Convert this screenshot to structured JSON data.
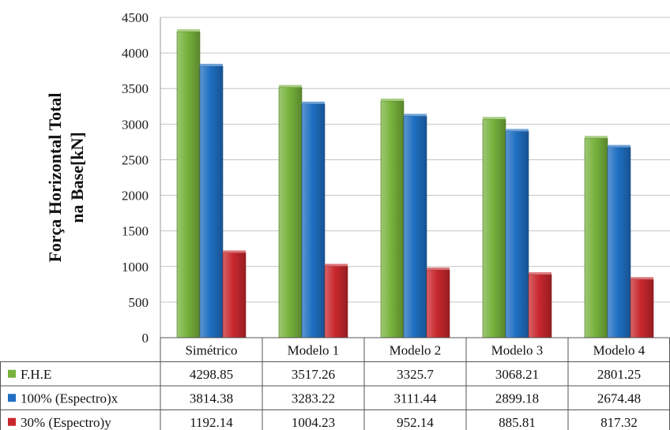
{
  "chart_data": {
    "type": "bar",
    "categories": [
      "Simétrico",
      "Modelo 1",
      "Modelo 2",
      "Modelo 3",
      "Modelo 4"
    ],
    "series": [
      {
        "name": "F.H.E",
        "color": "#77b23c",
        "values": [
          4298.85,
          3517.26,
          3325.7,
          3068.21,
          2801.25
        ],
        "labels": [
          "4298.85",
          "3517.26",
          "3325.7",
          "3068.21",
          "2801.25"
        ]
      },
      {
        "name": "100% (Espectro)x",
        "color": "#1f6fc2",
        "values": [
          3814.38,
          3283.22,
          3111.44,
          2899.18,
          2674.48
        ],
        "labels": [
          "3814.38",
          "3283.22",
          "3111.44",
          "2899.18",
          "2674.48"
        ]
      },
      {
        "name": "30% (Espectro)y",
        "color": "#c8282d",
        "values": [
          1192.14,
          1004.23,
          952.14,
          885.81,
          817.32
        ],
        "labels": [
          "1192.14",
          "1004.23",
          "952.14",
          "885.81",
          "817.32"
        ]
      }
    ],
    "ylabel": [
      "Força Horizontal Total",
      "na Base[kN]"
    ],
    "ylim": [
      0,
      4500
    ],
    "yticks": [
      0,
      500,
      1000,
      1500,
      2000,
      2500,
      3000,
      3500,
      4000,
      4500
    ],
    "grid": true,
    "legend": "data-table"
  }
}
